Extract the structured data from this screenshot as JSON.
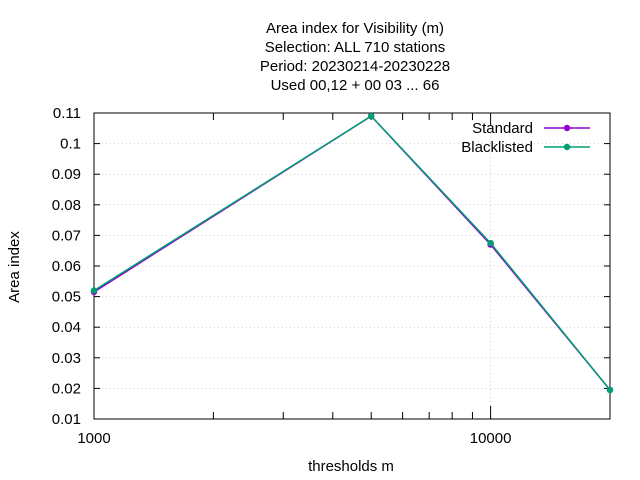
{
  "chart_data": {
    "type": "line",
    "title_lines": [
      "Area index  for Visibility (m)",
      "Selection: ALL     710 stations",
      "Period: 20230214-20230228",
      "Used  00,12  + 00 03 ... 66"
    ],
    "xlabel": "thresholds m",
    "ylabel": "Area index",
    "x_scale": "log",
    "xlim": [
      1000,
      20000
    ],
    "ylim": [
      0.01,
      0.11
    ],
    "x_tick_labels": [
      {
        "value": 1000,
        "label": "1000"
      },
      {
        "value": 10000,
        "label": "10000"
      }
    ],
    "y_ticks": [
      0.01,
      0.02,
      0.03,
      0.04,
      0.05,
      0.06,
      0.07,
      0.08,
      0.09,
      0.1,
      0.11
    ],
    "y_tick_labels": [
      "0.01",
      "0.02",
      "0.03",
      "0.04",
      "0.05",
      "0.06",
      "0.07",
      "0.08",
      "0.09",
      "0.1",
      "0.11"
    ],
    "grid": true,
    "legend_position": "top-right",
    "series": [
      {
        "name": "Standard",
        "color": "#9400d3",
        "x": [
          1000,
          5000,
          10000,
          20000
        ],
        "y": [
          0.0515,
          0.109,
          0.067,
          0.0195
        ]
      },
      {
        "name": "Blacklisted",
        "color": "#009e73",
        "x": [
          1000,
          5000,
          10000,
          20000
        ],
        "y": [
          0.052,
          0.109,
          0.0675,
          0.0195
        ]
      }
    ]
  }
}
